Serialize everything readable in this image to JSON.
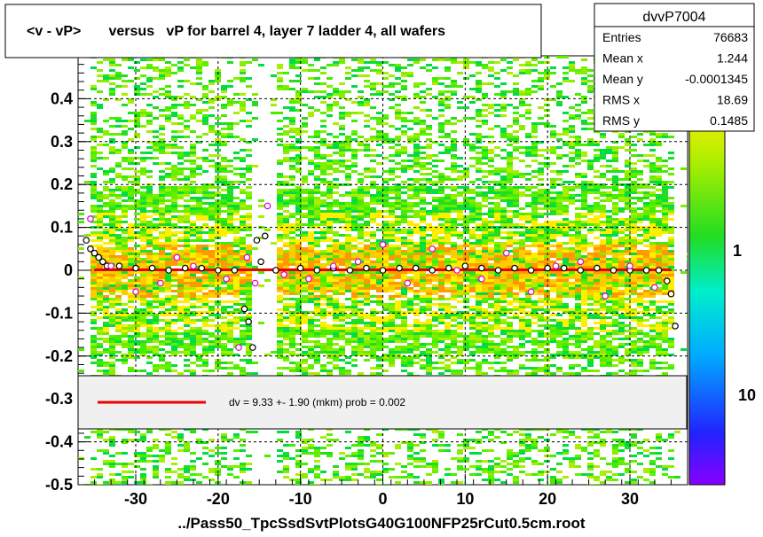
{
  "chart_data": {
    "type": "scatter",
    "title": "<v - vP>       versus   vP for barrel 4, layer 7 ladder 4, all wafers",
    "xlabel": "../Pass50_TpcSsdSvtPlotsG40G100NFP25rCut0.5cm.root",
    "ylabel": "",
    "xlim": [
      -37,
      37
    ],
    "ylim": [
      -0.5,
      0.5
    ],
    "x_ticks": [
      -30,
      -20,
      -10,
      0,
      10,
      20,
      30
    ],
    "y_ticks": [
      -0.5,
      -0.4,
      -0.3,
      -0.2,
      -0.1,
      0,
      0.1,
      0.2,
      0.3,
      0.4
    ],
    "grid": true,
    "stats_box": {
      "name": "dvvP7004",
      "rows": [
        {
          "label": "Entries",
          "value": "76683"
        },
        {
          "label": "Mean x",
          "value": "1.244"
        },
        {
          "label": "Mean y",
          "value": "-0.0001345"
        },
        {
          "label": "RMS x",
          "value": "18.69"
        },
        {
          "label": "RMS y",
          "value": "0.1485"
        }
      ]
    },
    "fit_legend": "dv =     9.33 +-  1.90 (mkm) prob = 0.002",
    "fit_line": {
      "x": [
        -35,
        35
      ],
      "y": [
        0.00093,
        0.00093
      ],
      "color": "#ee0000"
    },
    "color_scale_labels": [
      "10",
      "1",
      "10"
    ],
    "series": [
      {
        "marker": "open-circle-black",
        "x": [
          -36,
          -35.5,
          -35,
          -34.5,
          -34,
          -33.5,
          -32,
          -30,
          -28,
          -26,
          -24,
          -22,
          -20,
          -18,
          -16.8,
          -16.3,
          -15.8,
          -15.3,
          -14.8,
          -14.3,
          -13,
          -10,
          -8,
          -6,
          -4,
          -2,
          0,
          2,
          4,
          6,
          8,
          10,
          12,
          14,
          16,
          18,
          20,
          22,
          24,
          26,
          28,
          30,
          32,
          33.5,
          34.5,
          35,
          35.5
        ],
        "y": [
          0.07,
          0.05,
          0.04,
          0.03,
          0.02,
          0.01,
          0.01,
          0.005,
          0.005,
          0.0,
          0.005,
          0.005,
          0.0,
          0.0,
          -0.09,
          -0.12,
          -0.18,
          0.07,
          0.02,
          0.08,
          0.0,
          0.005,
          0.0,
          0.005,
          0.0,
          0.005,
          0.0,
          0.005,
          0.005,
          0.0,
          0.005,
          0.01,
          0.005,
          0.0,
          0.005,
          0.0,
          0.005,
          0.005,
          0.0,
          0.005,
          0.0,
          0.0,
          0.0,
          0.0,
          -0.025,
          -0.055,
          -0.13
        ]
      },
      {
        "marker": "open-circle-magenta",
        "x": [
          -35.5,
          -33,
          -30,
          -27,
          -25,
          -23,
          -19,
          -17.5,
          -16.5,
          -15.5,
          -14,
          -12,
          -9,
          -6,
          -3,
          0,
          3,
          6,
          9,
          12,
          15,
          18,
          21,
          24,
          27,
          30,
          33
        ],
        "y": [
          0.12,
          0.01,
          -0.05,
          -0.03,
          0.03,
          0.01,
          -0.02,
          -0.18,
          0.03,
          -0.03,
          0.15,
          -0.01,
          -0.02,
          0.01,
          0.02,
          0.06,
          -0.03,
          0.05,
          0.0,
          -0.02,
          0.04,
          -0.05,
          0.01,
          0.02,
          -0.06,
          0.01,
          -0.04
        ]
      }
    ]
  }
}
